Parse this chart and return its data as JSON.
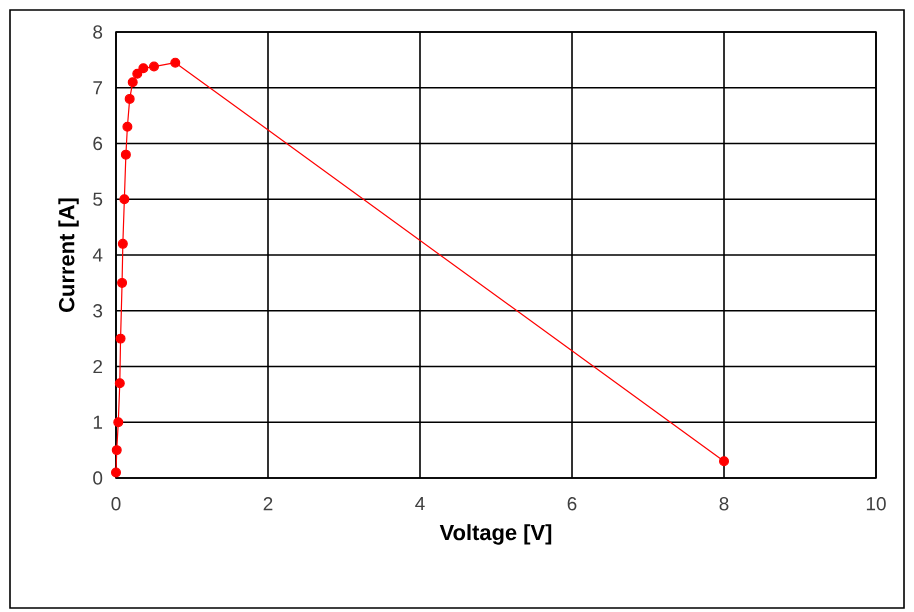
{
  "chart_data": {
    "type": "line",
    "xlabel": "Voltage [V]",
    "ylabel": "Current [A]",
    "x": [
      0,
      0.01,
      0.03,
      0.05,
      0.06,
      0.08,
      0.09,
      0.11,
      0.13,
      0.15,
      0.18,
      0.22,
      0.28,
      0.36,
      0.5,
      0.78,
      8
    ],
    "series": [
      {
        "color": "#ff0000",
        "values": [
          0.1,
          0.5,
          1,
          1.7,
          2.5,
          3.5,
          4.2,
          5,
          5.8,
          6.3,
          6.8,
          7.1,
          7.25,
          7.35,
          7.38,
          7.45,
          0.3
        ]
      }
    ],
    "xlim": [
      0,
      10
    ],
    "ylim": [
      0,
      8
    ],
    "xticks": [
      0,
      2,
      4,
      6,
      8,
      10
    ],
    "yticks": [
      0,
      1,
      2,
      3,
      4,
      5,
      6,
      7,
      8
    ],
    "grid": true,
    "marker": "circle",
    "line_style": "solid"
  }
}
